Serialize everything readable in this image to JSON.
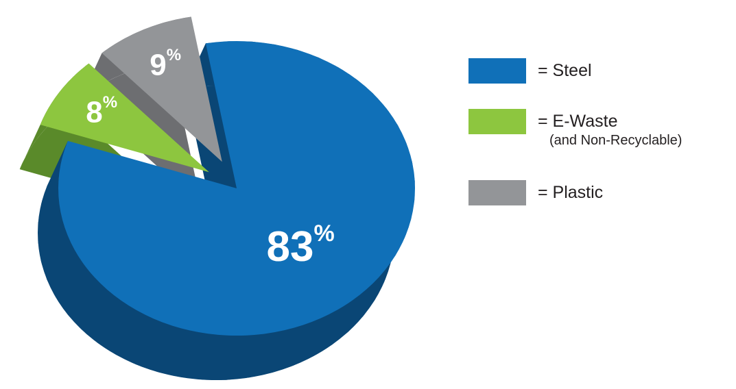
{
  "chart_data": {
    "type": "pie",
    "style": "3d-exploded",
    "slices": [
      {
        "label": "= Steel",
        "sublabel": "",
        "value": 83,
        "value_label": "83",
        "unit": "%",
        "color": "#1070b8",
        "side_color": "#0a4675"
      },
      {
        "label": "= E-Waste",
        "sublabel": "(and Non-Recyclable)",
        "value": 8,
        "value_label": "8",
        "unit": "%",
        "color": "#8dc63f",
        "side_color": "#5a8a2a"
      },
      {
        "label": "= Plastic",
        "sublabel": "",
        "value": 9,
        "value_label": "9",
        "unit": "%",
        "color": "#939598",
        "side_color": "#6d6e71"
      }
    ],
    "legend": "right"
  }
}
